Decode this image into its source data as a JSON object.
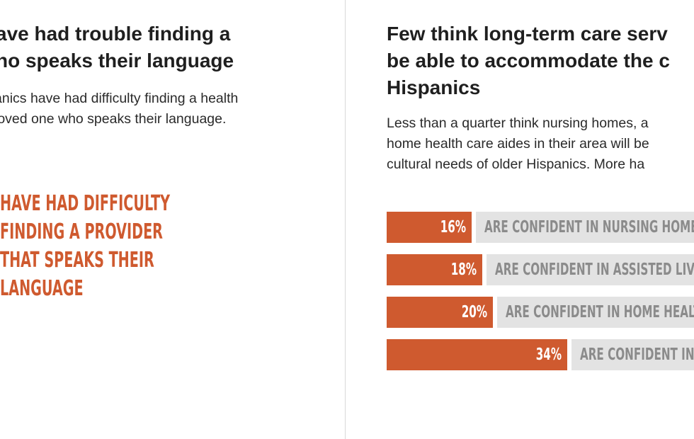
{
  "left_panel": {
    "title_lines": [
      "ave had trouble finding a",
      "ho speaks their language"
    ],
    "description_lines": [
      "anics have had difficulty finding a health",
      "loved one who speaks their language."
    ],
    "callout_lines": [
      "HAVE HAD DIFFICULTY",
      "FINDING A PROVIDER",
      "THAT SPEAKS THEIR",
      "LANGUAGE"
    ]
  },
  "right_panel": {
    "title_lines": [
      "Few think long-term care serv",
      "be able to accommodate the c",
      "Hispanics"
    ],
    "description_lines": [
      "Less than a quarter think nursing homes, a",
      "home health care aides in their area will be",
      "cultural needs of older Hispanics. More ha"
    ]
  },
  "colors": {
    "accent": "#cf5a2f",
    "label_background": "#e3e3e3",
    "label_text": "#8b8b8b",
    "divider": "#d8d8d8"
  },
  "chart_data": {
    "type": "bar",
    "orientation": "horizontal",
    "categories": [
      "ARE CONFIDENT IN NURSING HOMES",
      "ARE CONFIDENT IN ASSISTED LIVING",
      "ARE CONFIDENT IN HOME HEALTH",
      "ARE CONFIDENT IN H"
    ],
    "values": [
      16,
      18,
      20,
      34
    ],
    "value_labels": [
      "16%",
      "18%",
      "20%",
      "34%"
    ],
    "unit": "%",
    "title": "",
    "xlabel": "",
    "ylabel": ""
  }
}
